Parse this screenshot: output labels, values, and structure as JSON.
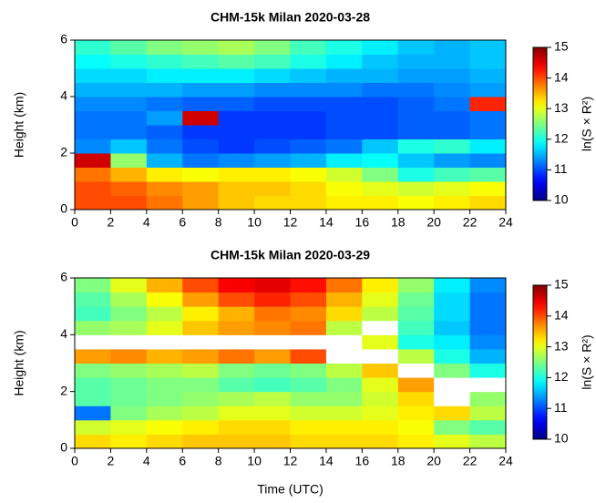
{
  "chart_data": [
    {
      "type": "heatmap",
      "title": "CHM-15k Milan 2020-03-28",
      "y_label": "Height (km)",
      "colorbar_label": "ln(S × R²)",
      "colormap": "jet",
      "over_color": "#ffffff",
      "xlim": [
        0,
        24
      ],
      "xticks": [
        0,
        2,
        4,
        6,
        8,
        10,
        12,
        14,
        16,
        18,
        20,
        22,
        24
      ],
      "ylim": [
        0,
        6
      ],
      "yticks": [
        0,
        2,
        4,
        6
      ],
      "zlim": [
        10,
        15
      ],
      "zticks": [
        10,
        11,
        12,
        13,
        14,
        15
      ],
      "x_edges": [
        0,
        2,
        4,
        6,
        8,
        10,
        12,
        14,
        16,
        18,
        20,
        22,
        24
      ],
      "y_edges": [
        0,
        0.5,
        1,
        1.5,
        2,
        2.5,
        3,
        3.5,
        4,
        4.5,
        5,
        5.5,
        6
      ],
      "z": [
        [
          14,
          14,
          13.8,
          13.6,
          13.4,
          13.3,
          13.3,
          13.2,
          13.2,
          13.1,
          13.2,
          13.3
        ],
        [
          14,
          13.9,
          13.7,
          13.6,
          13.4,
          13.4,
          13.3,
          13.1,
          13,
          12.9,
          13,
          13.1
        ],
        [
          13.8,
          13.5,
          13.2,
          13.1,
          13.2,
          13.2,
          13.1,
          12.9,
          12.5,
          12,
          12.2,
          12.3
        ],
        [
          14.6,
          12.6,
          11.5,
          11.2,
          11.3,
          11.4,
          11.5,
          11.8,
          11.9,
          11.6,
          11.4,
          11.3
        ],
        [
          11.3,
          11.6,
          11.2,
          11,
          10.9,
          11,
          11.1,
          11.2,
          11.6,
          12,
          12.1,
          11.8
        ],
        [
          11.2,
          11.2,
          11.1,
          10.9,
          10.9,
          10.9,
          10.9,
          11,
          11,
          11.1,
          11.1,
          11.2
        ],
        [
          11.2,
          11.2,
          11.4,
          14.6,
          10.9,
          10.9,
          10.9,
          11,
          11,
          11.1,
          11.1,
          11.2
        ],
        [
          11.3,
          11.3,
          11.2,
          11.1,
          11.1,
          11,
          11,
          11,
          11,
          11.1,
          11.2,
          14.2
        ],
        [
          11.5,
          11.5,
          11.5,
          11.4,
          11.4,
          11.3,
          11.3,
          11.3,
          11.2,
          11.2,
          11.3,
          11.4
        ],
        [
          11.7,
          11.7,
          11.8,
          11.8,
          11.8,
          11.7,
          11.6,
          11.5,
          11.5,
          11.4,
          11.4,
          11.5
        ],
        [
          11.9,
          12,
          12.1,
          12.2,
          12.3,
          12.2,
          12,
          11.8,
          11.6,
          11.5,
          11.5,
          11.6
        ],
        [
          12.1,
          12.3,
          12.5,
          12.6,
          12.7,
          12.5,
          12.2,
          12,
          11.8,
          11.6,
          11.5,
          11.6
        ]
      ]
    },
    {
      "type": "heatmap",
      "title": "CHM-15k Milan 2020-03-29",
      "x_label": "Time (UTC)",
      "y_label": "Height (km)",
      "colorbar_label": "ln(S × R²)",
      "colormap": "jet",
      "over_color": "#ffffff",
      "xlim": [
        0,
        24
      ],
      "xticks": [
        0,
        2,
        4,
        6,
        8,
        10,
        12,
        14,
        16,
        18,
        20,
        22,
        24
      ],
      "ylim": [
        0,
        6
      ],
      "yticks": [
        0,
        2,
        4,
        6
      ],
      "zlim": [
        10,
        15
      ],
      "zticks": [
        10,
        11,
        12,
        13,
        14,
        15
      ],
      "x_edges": [
        0,
        2,
        4,
        6,
        8,
        10,
        12,
        14,
        16,
        18,
        20,
        22,
        24
      ],
      "y_edges": [
        0,
        0.5,
        1,
        1.5,
        2,
        2.5,
        3,
        3.5,
        4,
        4.5,
        5,
        5.5,
        6
      ],
      "z": [
        [
          13.3,
          13.2,
          13.3,
          13.4,
          13.4,
          13.4,
          13.3,
          13.3,
          13.3,
          13.2,
          13,
          12.8
        ],
        [
          12.9,
          13,
          13.1,
          13.2,
          13.3,
          13.3,
          13.2,
          13.2,
          13.2,
          13.1,
          12.5,
          12.3
        ],
        [
          11.2,
          12.5,
          12.7,
          12.8,
          13,
          13,
          12.9,
          12.9,
          13,
          13.2,
          13.3,
          12.8
        ],
        [
          12.3,
          12.4,
          12.5,
          12.6,
          12.7,
          12.8,
          12.6,
          12.6,
          12.9,
          13.3,
          16,
          12.6
        ],
        [
          12.3,
          12.4,
          12.5,
          12.5,
          12.3,
          12.2,
          12.3,
          12.5,
          13,
          13.6,
          16,
          16
        ],
        [
          12.5,
          12.6,
          12.7,
          12.8,
          12.5,
          12.4,
          12.5,
          12.8,
          13.4,
          16,
          12.5,
          12
        ],
        [
          13.6,
          13.7,
          13.5,
          13.6,
          13.8,
          13.6,
          14,
          16,
          16,
          12.8,
          12,
          11.5
        ],
        [
          16,
          16,
          16,
          16,
          16,
          16,
          16,
          16,
          13,
          12,
          11.8,
          11.3
        ],
        [
          12.6,
          12.7,
          13,
          13.4,
          13.6,
          13.7,
          13.8,
          12.8,
          16,
          12.2,
          11.6,
          11.2
        ],
        [
          12.2,
          12.5,
          12.8,
          13.2,
          13.5,
          13.8,
          13.7,
          13.3,
          12.8,
          12.3,
          11.7,
          11.2
        ],
        [
          12.3,
          12.7,
          13.1,
          13.6,
          14,
          14.2,
          14,
          13.5,
          13,
          12.4,
          11.7,
          11.2
        ],
        [
          12.5,
          13,
          13.5,
          14,
          14.4,
          14.5,
          14.3,
          13.8,
          13.2,
          12.6,
          11.8,
          11.3
        ]
      ]
    }
  ]
}
